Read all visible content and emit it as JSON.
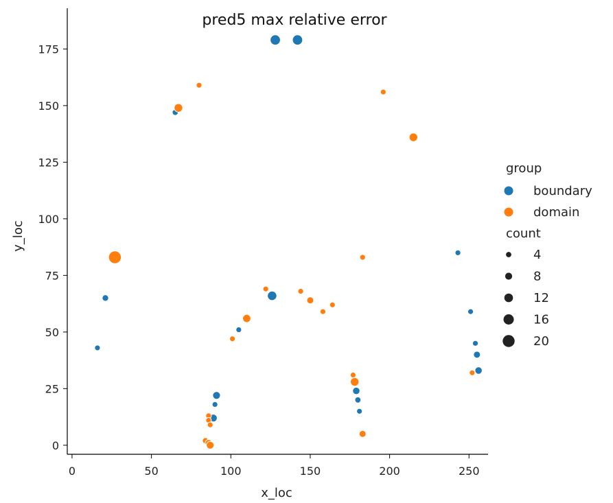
{
  "chart_data": {
    "type": "scatter",
    "title": "pred5 max relative error",
    "xlabel": "x_loc",
    "ylabel": "y_loc",
    "xlim": [
      -3,
      262
    ],
    "ylim": [
      -4,
      193
    ],
    "xticks": [
      0,
      50,
      100,
      150,
      200,
      250
    ],
    "yticks": [
      0,
      25,
      50,
      75,
      100,
      125,
      150,
      175
    ],
    "grid": false,
    "legend_position": "right",
    "hue": {
      "title": "group",
      "entries": [
        {
          "name": "boundary",
          "color": "#1f77b4"
        },
        {
          "name": "domain",
          "color": "#ff7f0e"
        }
      ]
    },
    "size": {
      "title": "count",
      "entries": [
        4,
        8,
        12,
        16,
        20
      ]
    },
    "series": [
      {
        "name": "boundary",
        "color": "#1f77b4",
        "points": [
          {
            "x": 128,
            "y": 179,
            "count": 14
          },
          {
            "x": 142,
            "y": 179,
            "count": 14
          },
          {
            "x": 65,
            "y": 147,
            "count": 4
          },
          {
            "x": 243,
            "y": 85,
            "count": 3
          },
          {
            "x": 126,
            "y": 66,
            "count": 12
          },
          {
            "x": 21,
            "y": 65,
            "count": 5
          },
          {
            "x": 251,
            "y": 59,
            "count": 3
          },
          {
            "x": 105,
            "y": 51,
            "count": 3
          },
          {
            "x": 254,
            "y": 45,
            "count": 3
          },
          {
            "x": 16,
            "y": 43,
            "count": 3
          },
          {
            "x": 255,
            "y": 40,
            "count": 6
          },
          {
            "x": 256,
            "y": 33,
            "count": 7
          },
          {
            "x": 179,
            "y": 24,
            "count": 7
          },
          {
            "x": 91,
            "y": 22,
            "count": 8
          },
          {
            "x": 180,
            "y": 20,
            "count": 4
          },
          {
            "x": 90,
            "y": 18,
            "count": 3
          },
          {
            "x": 181,
            "y": 15,
            "count": 3
          },
          {
            "x": 89,
            "y": 12,
            "count": 8
          }
        ]
      },
      {
        "name": "domain",
        "color": "#ff7f0e",
        "points": [
          {
            "x": 80,
            "y": 159,
            "count": 3
          },
          {
            "x": 196,
            "y": 156,
            "count": 3
          },
          {
            "x": 67,
            "y": 149,
            "count": 10
          },
          {
            "x": 215,
            "y": 136,
            "count": 10
          },
          {
            "x": 28,
            "y": 84,
            "count": 6
          },
          {
            "x": 27,
            "y": 83,
            "count": 20
          },
          {
            "x": 183,
            "y": 83,
            "count": 3
          },
          {
            "x": 122,
            "y": 69,
            "count": 3
          },
          {
            "x": 144,
            "y": 68,
            "count": 3
          },
          {
            "x": 150,
            "y": 64,
            "count": 6
          },
          {
            "x": 164,
            "y": 62,
            "count": 3
          },
          {
            "x": 158,
            "y": 59,
            "count": 3
          },
          {
            "x": 110,
            "y": 56,
            "count": 9
          },
          {
            "x": 101,
            "y": 47,
            "count": 3
          },
          {
            "x": 252,
            "y": 32,
            "count": 3
          },
          {
            "x": 177,
            "y": 31,
            "count": 3
          },
          {
            "x": 178,
            "y": 28,
            "count": 10
          },
          {
            "x": 86,
            "y": 13,
            "count": 3
          },
          {
            "x": 86,
            "y": 11,
            "count": 3
          },
          {
            "x": 87,
            "y": 9,
            "count": 3
          },
          {
            "x": 183,
            "y": 5,
            "count": 6
          },
          {
            "x": 84,
            "y": 2,
            "count": 4
          },
          {
            "x": 86,
            "y": 1,
            "count": 6
          },
          {
            "x": 87,
            "y": 0,
            "count": 8
          }
        ]
      }
    ]
  }
}
